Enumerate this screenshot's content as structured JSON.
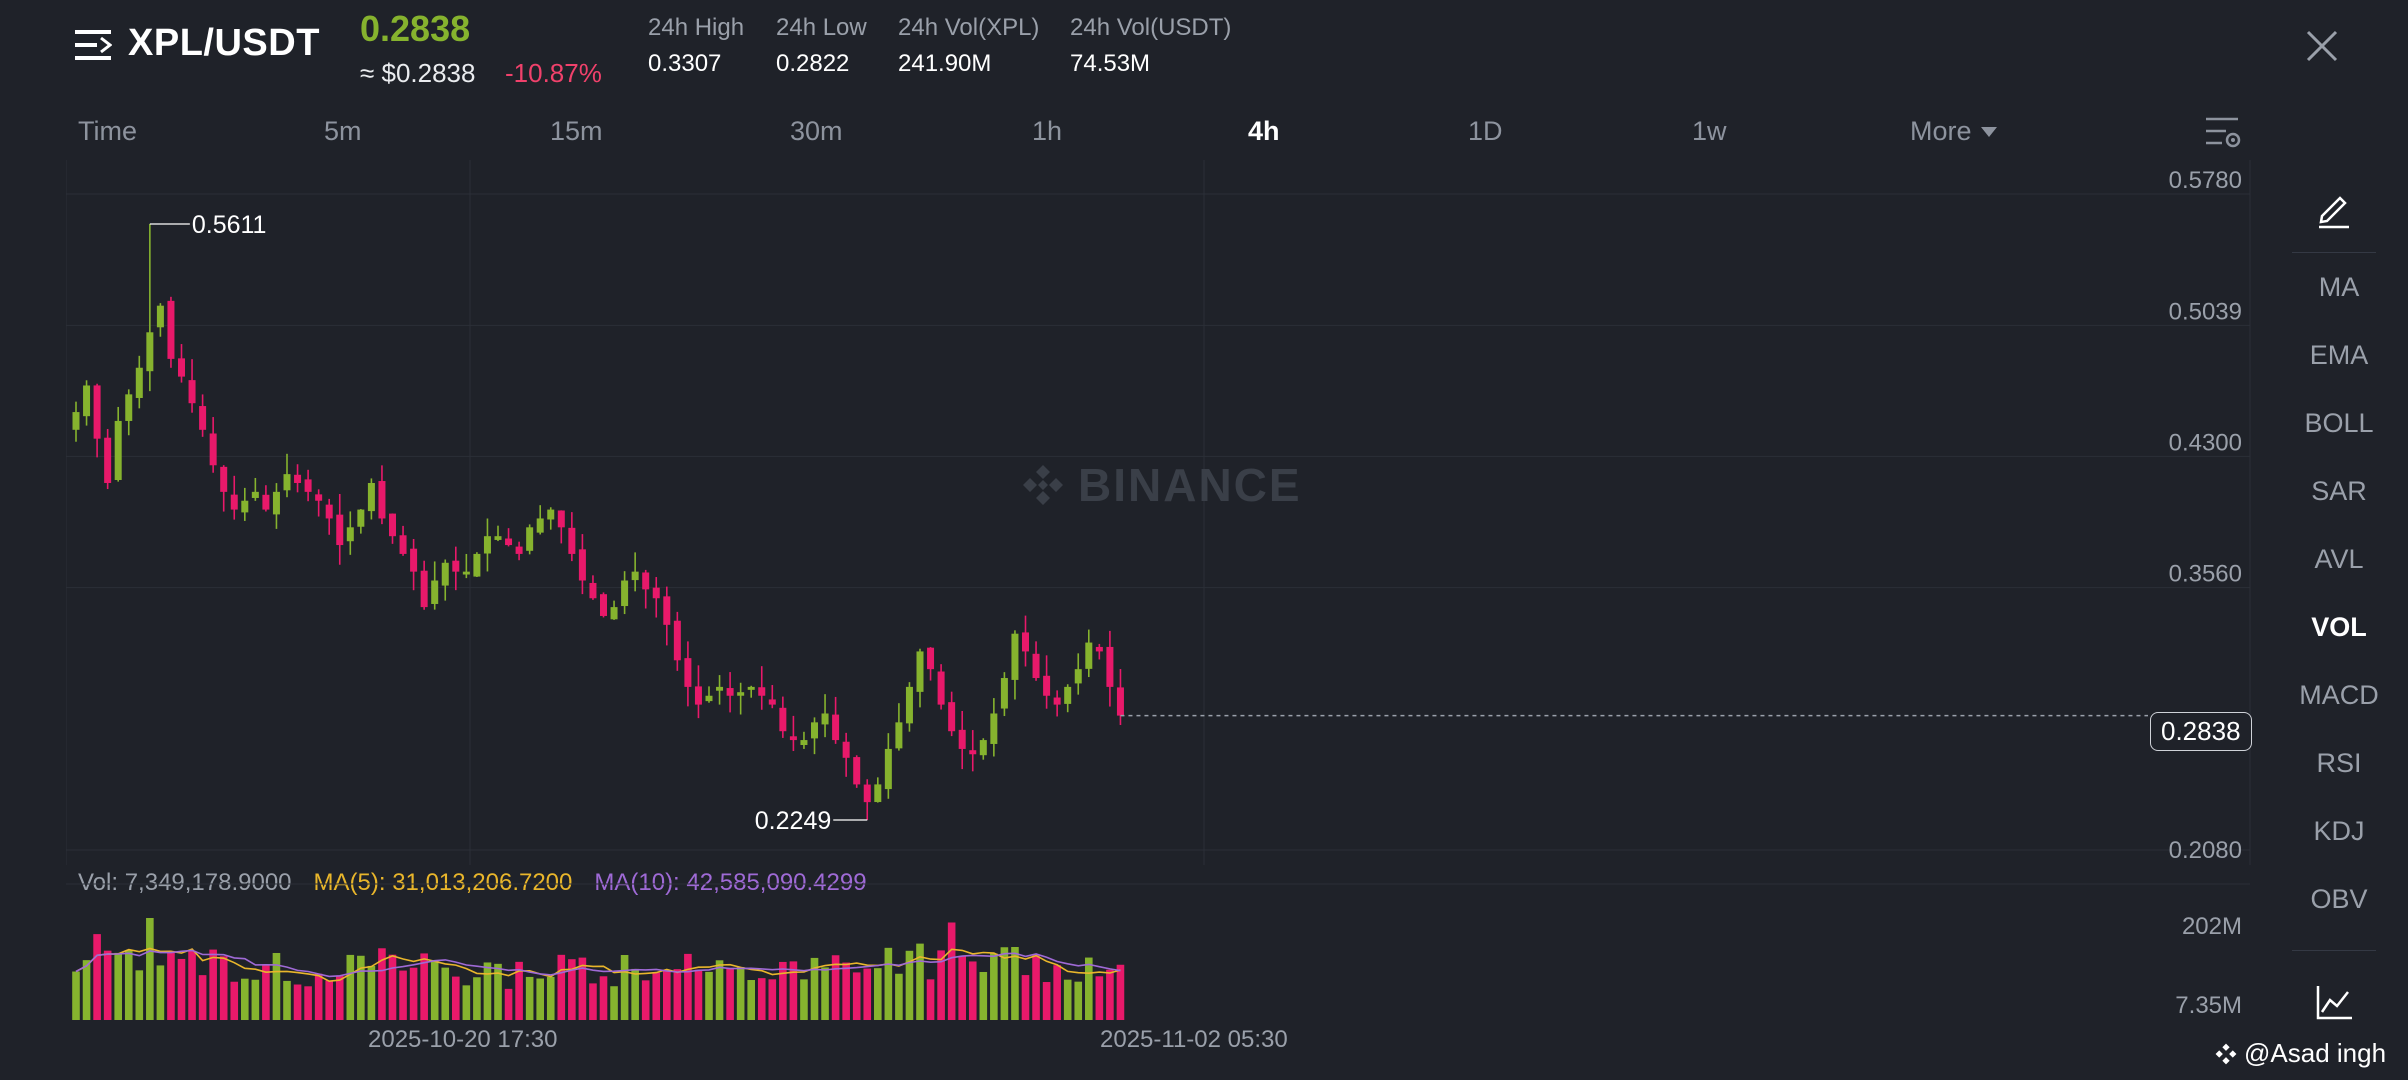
{
  "header": {
    "menu_icon": "menu-icon",
    "pair": "XPL/USDT",
    "last_price": "0.2838",
    "approx_price": "≈ $0.2838",
    "change_pct": "-10.87%",
    "stats": [
      {
        "label": "24h High",
        "value": "0.3307"
      },
      {
        "label": "24h Low",
        "value": "0.2822"
      },
      {
        "label": "24h Vol(XPL)",
        "value": "241.90M"
      },
      {
        "label": "24h Vol(USDT)",
        "value": "74.53M"
      }
    ],
    "close_icon": "close-icon"
  },
  "intervals": {
    "tabs": [
      {
        "label": "Time"
      },
      {
        "label": "5m"
      },
      {
        "label": "15m"
      },
      {
        "label": "30m"
      },
      {
        "label": "1h"
      },
      {
        "label": "4h"
      },
      {
        "label": "1D"
      },
      {
        "label": "1w"
      }
    ],
    "active": "4h",
    "more_label": "More",
    "settings_icon": "chart-settings-icon"
  },
  "indicators": {
    "draw_icon": "pencil-draw-icon",
    "items": [
      "MA",
      "EMA",
      "BOLL",
      "SAR",
      "AVL",
      "VOL",
      "MACD",
      "RSI",
      "KDJ",
      "OBV"
    ],
    "active": "VOL",
    "chart_type_icon": "line-chart-icon"
  },
  "price_axis": [
    "0.5780",
    "0.5039",
    "0.4300",
    "0.3560",
    "0.2080"
  ],
  "current_price_tag": "0.2838",
  "high_marker": "0.5611",
  "low_marker": "0.2249",
  "watermark": "BINANCE",
  "volume": {
    "vol_text": "Vol: 7,349,178.9000",
    "ma5_text": "MA(5): 31,013,206.7200",
    "ma10_text": "MA(10): 42,585,090.4299",
    "axis_top": "202M",
    "axis_bottom": "7.35M"
  },
  "time_labels": [
    "2025-10-20 17:30",
    "2025-11-02 05:30"
  ],
  "credit": "@Asad   ingh",
  "colors": {
    "up": "#86b32e",
    "down": "#e8196a",
    "ma5": "#e9b62b",
    "ma10": "#9f6ad6"
  },
  "chart_data": {
    "type": "candlestick",
    "interval": "4h",
    "ylim": [
      0.208,
      0.578
    ],
    "yticks": [
      0.578,
      0.5039,
      0.43,
      0.356,
      0.208
    ],
    "current_price": 0.2838,
    "high": 0.5611,
    "low": 0.2249,
    "close_path": [
      0.455,
      0.47,
      0.44,
      0.415,
      0.45,
      0.465,
      0.48,
      0.5,
      0.515,
      0.485,
      0.475,
      0.46,
      0.445,
      0.425,
      0.41,
      0.4,
      0.405,
      0.41,
      0.4,
      0.41,
      0.42,
      0.415,
      0.41,
      0.405,
      0.395,
      0.38,
      0.39,
      0.4,
      0.415,
      0.395,
      0.385,
      0.375,
      0.365,
      0.345,
      0.36,
      0.37,
      0.365,
      0.365,
      0.375,
      0.385,
      0.385,
      0.38,
      0.375,
      0.39,
      0.395,
      0.4,
      0.39,
      0.375,
      0.36,
      0.35,
      0.34,
      0.345,
      0.36,
      0.365,
      0.355,
      0.35,
      0.335,
      0.315,
      0.3,
      0.29,
      0.295,
      0.3,
      0.295,
      0.297,
      0.3,
      0.295,
      0.29,
      0.275,
      0.27,
      0.27,
      0.28,
      0.285,
      0.27,
      0.26,
      0.245,
      0.235,
      0.245,
      0.265,
      0.28,
      0.3,
      0.32,
      0.31,
      0.29,
      0.275,
      0.265,
      0.262,
      0.27,
      0.285,
      0.305,
      0.33,
      0.32,
      0.305,
      0.295,
      0.29,
      0.3,
      0.31,
      0.325,
      0.32,
      0.3,
      0.2838
    ],
    "volume_ylim": [
      7350000,
      202000000
    ]
  }
}
